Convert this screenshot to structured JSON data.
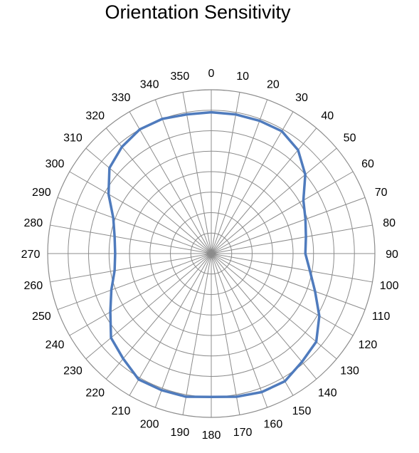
{
  "chart_data": {
    "type": "radar",
    "title": "Orientation Sensitivity",
    "angle_ticks": [
      "0",
      "10",
      "20",
      "30",
      "40",
      "50",
      "60",
      "70",
      "80",
      "90",
      "100",
      "110",
      "120",
      "130",
      "140",
      "150",
      "160",
      "170",
      "180",
      "190",
      "200",
      "210",
      "220",
      "230",
      "240",
      "250",
      "260",
      "270",
      "280",
      "290",
      "300",
      "310",
      "320",
      "330",
      "340",
      "350"
    ],
    "radial_range": [
      0,
      8
    ],
    "radial_gridlines": 8,
    "radial_tick_labels_shown": false,
    "grid": true,
    "legend": "none",
    "series": [
      {
        "angles": [
          0,
          10,
          20,
          30,
          40,
          50,
          60,
          70,
          80,
          90,
          100,
          110,
          120,
          130,
          140,
          150,
          160,
          170,
          180,
          190,
          200,
          210,
          220,
          230,
          240,
          250,
          260,
          270,
          280,
          290,
          300,
          310,
          320,
          330,
          340,
          350
        ],
        "values": [
          6.9,
          6.9,
          6.9,
          6.9,
          6.6,
          6.0,
          5.2,
          4.9,
          4.7,
          4.6,
          4.9,
          5.4,
          6.1,
          6.7,
          6.9,
          7.2,
          7.2,
          7.1,
          7.0,
          7.1,
          7.1,
          7.1,
          6.7,
          6.4,
          5.7,
          5.2,
          4.8,
          4.7,
          4.8,
          5.1,
          5.8,
          6.5,
          6.8,
          7.0,
          7.0,
          6.9
        ],
        "color": "#4f7bbd"
      }
    ],
    "grid_color": "#8c8c8c"
  }
}
